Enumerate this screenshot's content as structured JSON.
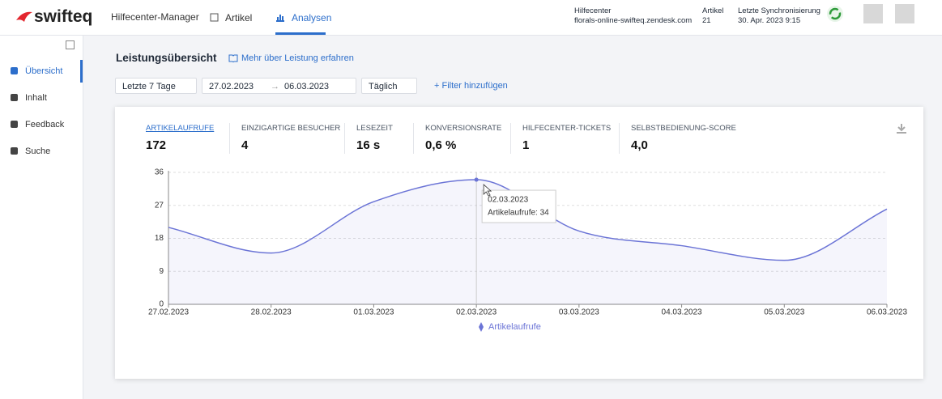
{
  "header": {
    "logo": "swifteq",
    "app": "Hilfecenter-Manager",
    "nav": [
      "Artikel",
      "Analysen"
    ],
    "helpcenter_label": "Hilfecenter",
    "helpcenter_url": "florals-online-swifteq.zendesk.com",
    "articles_label": "Artikel",
    "articles_count": "21",
    "sync_label": "Letzte Synchronisierung",
    "sync_time": "30. Apr. 2023 9:15"
  },
  "sidebar": {
    "items": [
      "Übersicht",
      "Inhalt",
      "Feedback",
      "Suche"
    ]
  },
  "page": {
    "title": "Leistungsübersicht",
    "link": "Mehr über Leistung erfahren"
  },
  "filters": {
    "range": "Letzte 7 Tage",
    "start": "27.02.2023",
    "end": "06.03.2023",
    "interval": "Täglich",
    "add": "+ Filter hinzufügen"
  },
  "metrics": [
    {
      "label": "ARTIKELAUFRUFE",
      "value": "172"
    },
    {
      "label": "EINZIGARTIGE BESUCHER",
      "value": "4"
    },
    {
      "label": "LESEZEIT",
      "value": "16 s"
    },
    {
      "label": "KONVERSIONSRATE",
      "value": "0,6 %"
    },
    {
      "label": "HILFECENTER-TICKETS",
      "value": "1"
    },
    {
      "label": "SELBSTBEDIENUNG-SCORE",
      "value": "4,0"
    }
  ],
  "chart_data": {
    "type": "line",
    "x": [
      "27.02.2023",
      "28.02.2023",
      "01.03.2023",
      "02.03.2023",
      "03.03.2023",
      "04.03.2023",
      "05.03.2023",
      "06.03.2023"
    ],
    "series": [
      {
        "name": "Artikelaufrufe",
        "color": "#6b74d6",
        "values": [
          21,
          14,
          28,
          34,
          20,
          16,
          12,
          26
        ]
      }
    ],
    "ylim": [
      0,
      36
    ],
    "yticks": [
      0,
      9,
      18,
      27,
      36
    ],
    "grid": true,
    "tooltip": {
      "title": "02.03.2023",
      "text": "Artikelaufrufe: 34"
    }
  }
}
